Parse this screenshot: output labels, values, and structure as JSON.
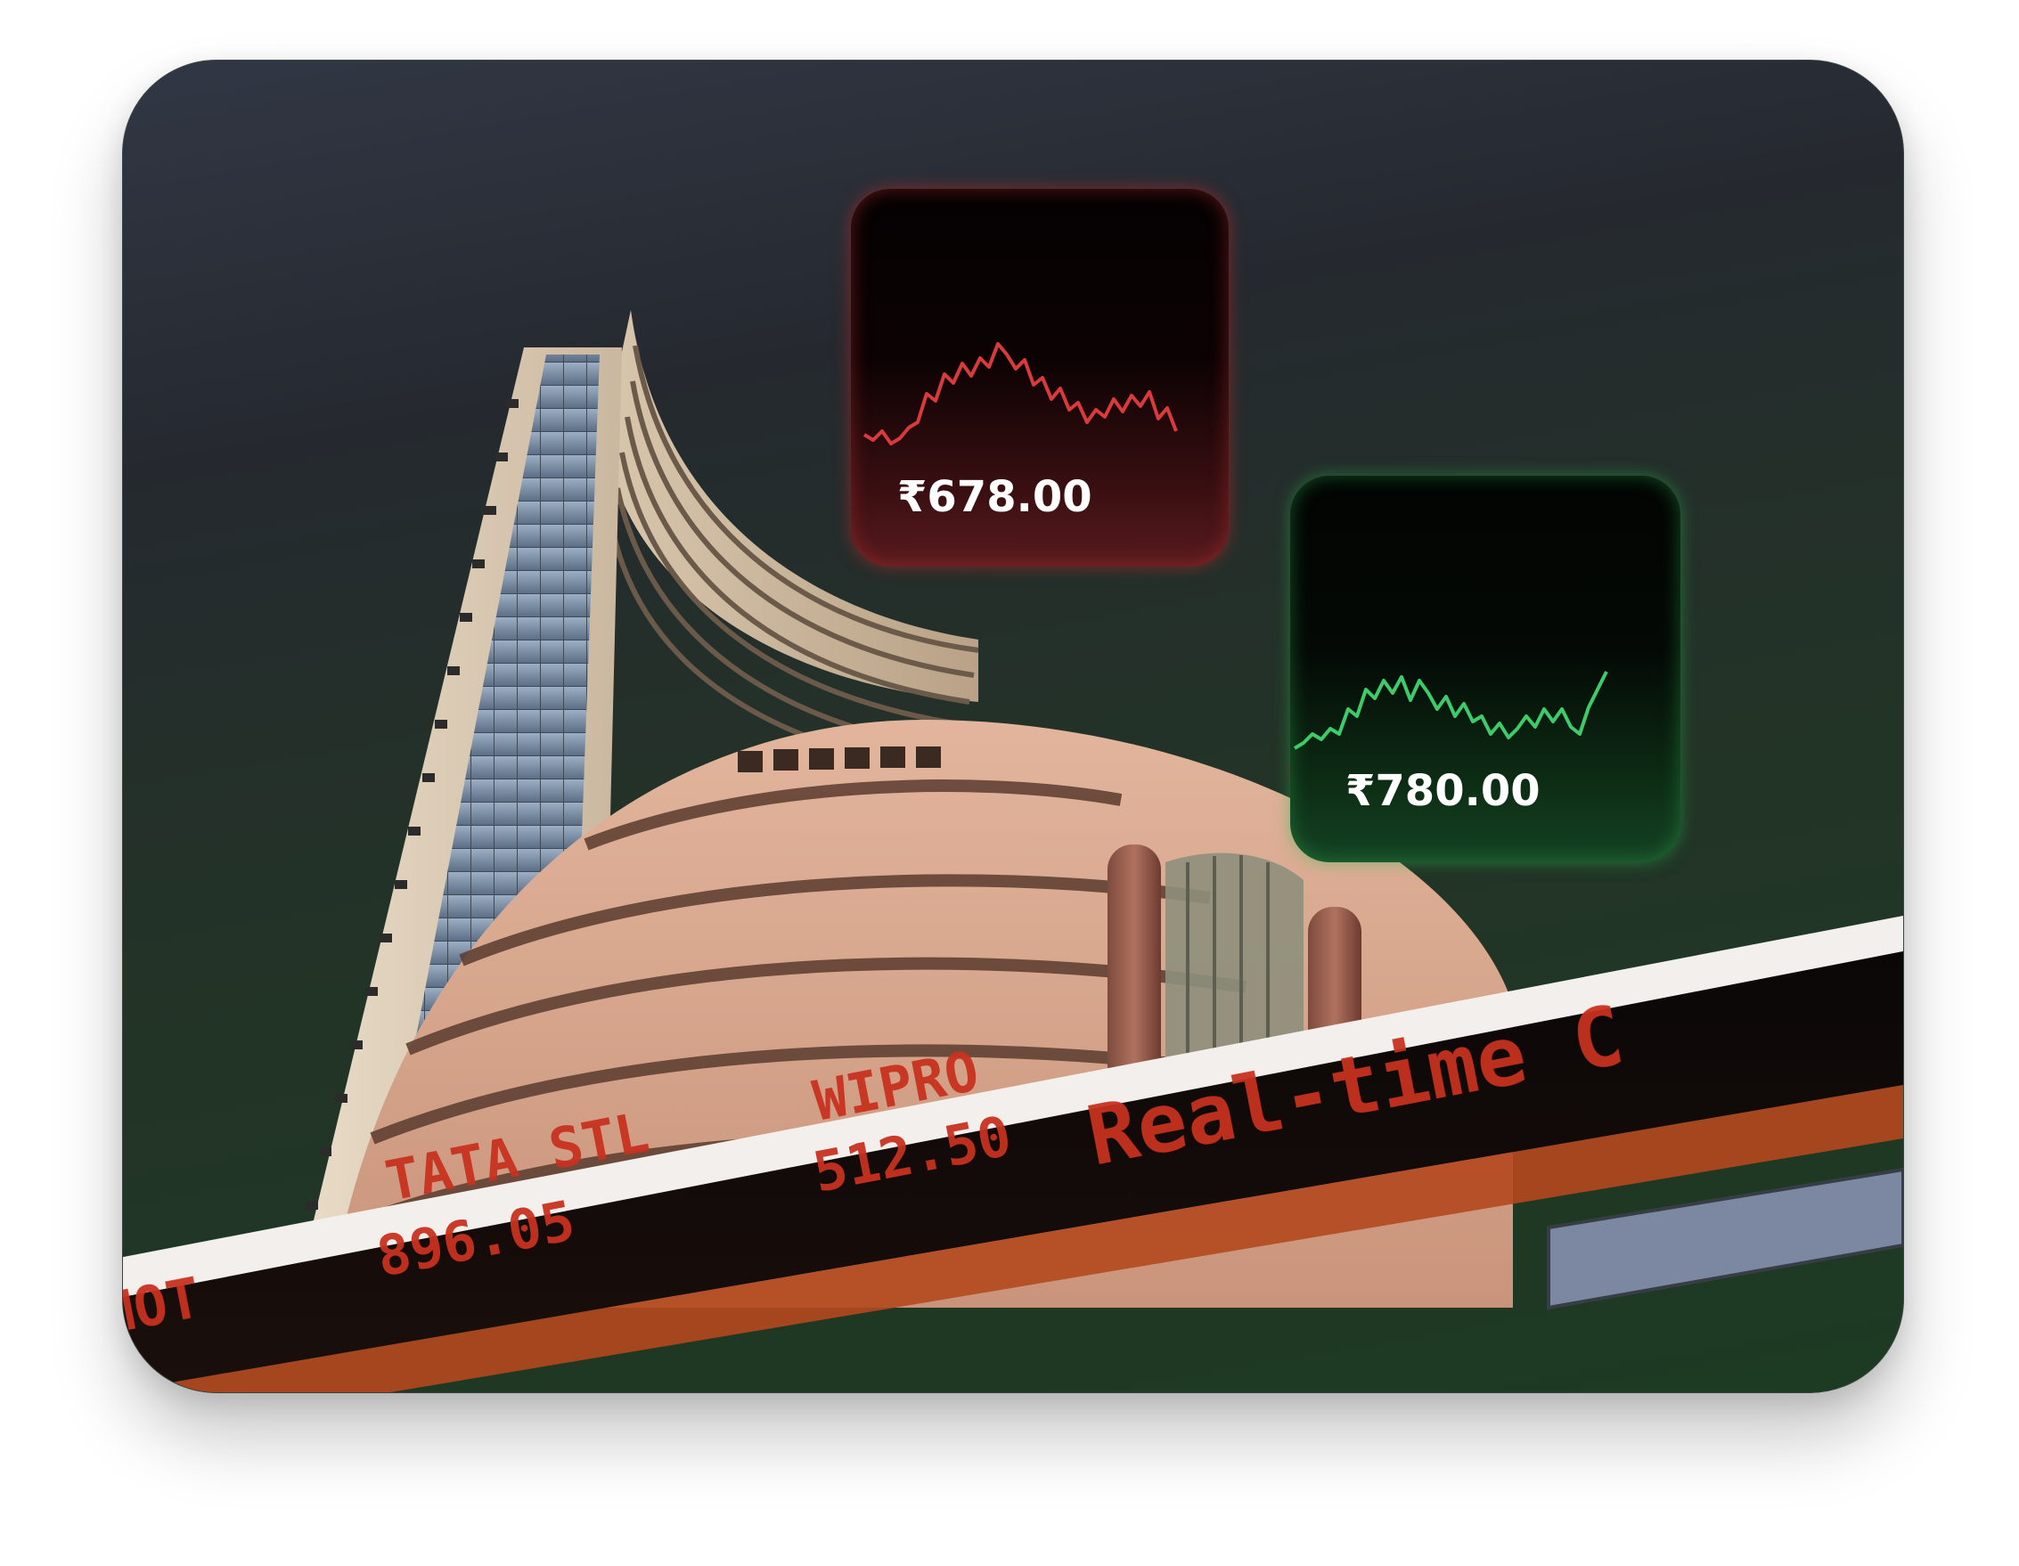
{
  "colors": {
    "card_top": "#323745",
    "card_bottom": "#1d3a23",
    "sell_red": "#d93a3a",
    "buy_green": "#3ecb6a",
    "building_stone": "#d9ab93",
    "ticker_led": "#c8321f"
  },
  "tiles": {
    "red": {
      "price": "₹678.00",
      "trend": "down"
    },
    "green": {
      "price": "₹780.00",
      "trend": "up"
    }
  },
  "ticker": {
    "headline": "Real-time C",
    "stocks": [
      {
        "symbol": "TATA STL",
        "price": "896.05"
      },
      {
        "symbol": "WIPRO",
        "price": "512.50"
      }
    ],
    "partial_left": "MOT"
  }
}
